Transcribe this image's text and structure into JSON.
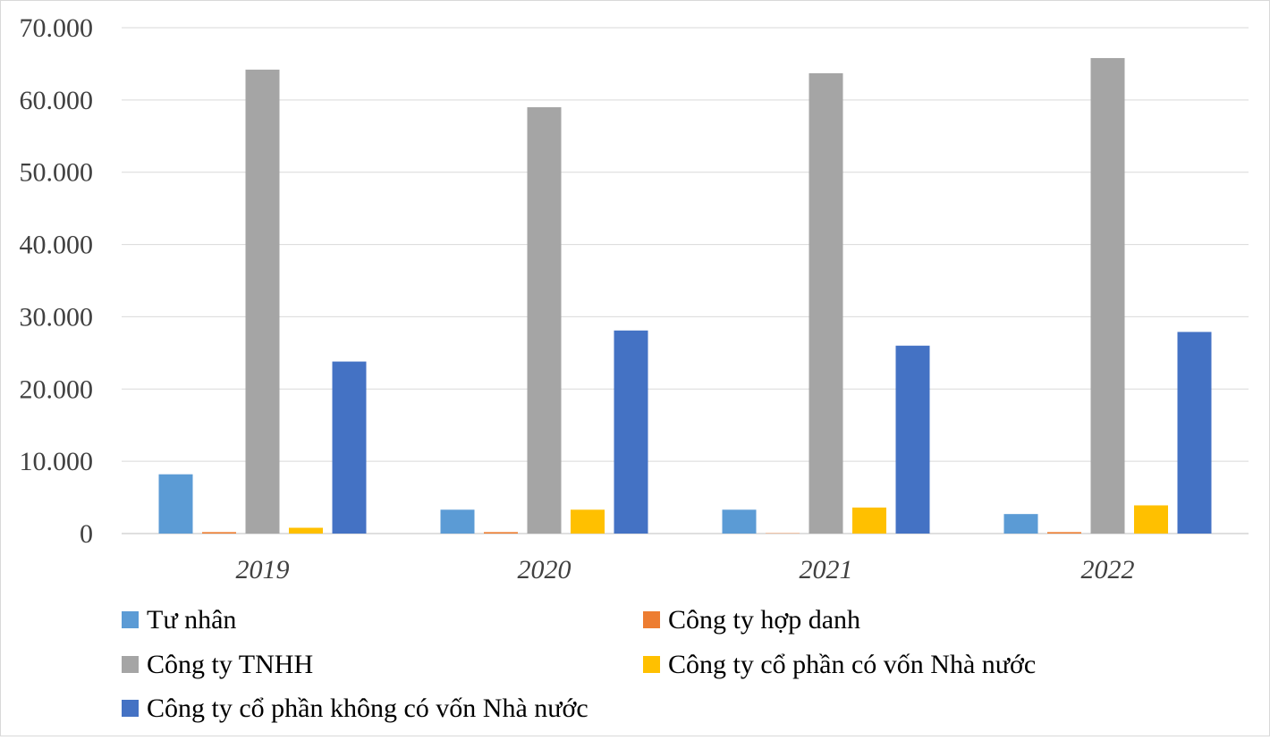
{
  "chart_data": {
    "type": "bar",
    "title": "",
    "xlabel": "",
    "ylabel": "",
    "categories": [
      "2019",
      "2020",
      "2021",
      "2022"
    ],
    "ylim": [
      0,
      70000
    ],
    "yticks": [
      0,
      10000,
      20000,
      30000,
      40000,
      50000,
      60000,
      70000
    ],
    "ytick_labels": [
      "0",
      "10.000",
      "20.000",
      "30.000",
      "40.000",
      "50.000",
      "60.000",
      "70.000"
    ],
    "grid": true,
    "legend_position": "bottom",
    "series": [
      {
        "name": "Tư nhân",
        "color": "#5B9BD5",
        "values": [
          8200,
          3300,
          3300,
          2700
        ]
      },
      {
        "name": "Công ty hợp danh",
        "color": "#ED7D31",
        "values": [
          200,
          200,
          50,
          200
        ]
      },
      {
        "name": "Công ty TNHH",
        "color": "#A5A5A5",
        "values": [
          64200,
          59000,
          63700,
          65800
        ]
      },
      {
        "name": "Công ty cổ phần có vốn Nhà nước",
        "color": "#FFC000",
        "values": [
          800,
          3300,
          3600,
          3900
        ]
      },
      {
        "name": "Công ty cổ phần không có vốn Nhà nước",
        "color": "#4472C4",
        "values": [
          23800,
          28100,
          26000,
          27900
        ]
      }
    ]
  }
}
